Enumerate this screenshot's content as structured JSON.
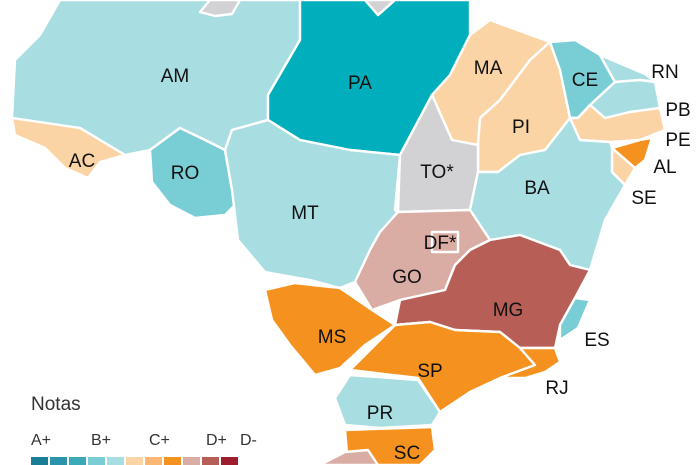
{
  "colors": {
    "teal_dark": "#00afbb",
    "teal_mid": "#79cdd5",
    "teal_light": "#a8dde2",
    "peach": "#fbd4a6",
    "orange": "#f5921f",
    "pink": "#d9aca4",
    "brick": "#b75f57",
    "gray": "#d2d2d4"
  },
  "states": [
    {
      "code": "AM",
      "label": "AM",
      "color": "#a8dde2"
    },
    {
      "code": "PA",
      "label": "PA",
      "color": "#00afbb"
    },
    {
      "code": "AC",
      "label": "AC",
      "color": "#fbd4a6"
    },
    {
      "code": "RO",
      "label": "RO",
      "color": "#79cdd5"
    },
    {
      "code": "MT",
      "label": "MT",
      "color": "#a8dde2"
    },
    {
      "code": "MA",
      "label": "MA",
      "color": "#fbd4a6"
    },
    {
      "code": "PI",
      "label": "PI",
      "color": "#fbd4a6"
    },
    {
      "code": "CE",
      "label": "CE",
      "color": "#79cdd5"
    },
    {
      "code": "RN",
      "label": "RN",
      "color": "#a8dde2"
    },
    {
      "code": "PB",
      "label": "PB",
      "color": "#a8dde2"
    },
    {
      "code": "PE",
      "label": "PE",
      "color": "#fbd4a6"
    },
    {
      "code": "AL",
      "label": "AL",
      "color": "#f5921f"
    },
    {
      "code": "SE",
      "label": "SE",
      "color": "#fbd4a6"
    },
    {
      "code": "TO",
      "label": "TO*",
      "color": "#d2d2d4"
    },
    {
      "code": "BA",
      "label": "BA",
      "color": "#a8dde2"
    },
    {
      "code": "DF",
      "label": "DF*",
      "color": "#d9aca4"
    },
    {
      "code": "GO",
      "label": "GO",
      "color": "#d9aca4"
    },
    {
      "code": "MG",
      "label": "MG",
      "color": "#b75f57"
    },
    {
      "code": "ES",
      "label": "ES",
      "color": "#79cdd5"
    },
    {
      "code": "MS",
      "label": "MS",
      "color": "#f5921f"
    },
    {
      "code": "SP",
      "label": "SP",
      "color": "#f5921f"
    },
    {
      "code": "RJ",
      "label": "RJ",
      "color": "#f5921f"
    },
    {
      "code": "PR",
      "label": "PR",
      "color": "#a8dde2"
    },
    {
      "code": "SC",
      "label": "SC",
      "color": "#f5921f"
    },
    {
      "code": "RS",
      "label": "",
      "color": "#d9aca4"
    },
    {
      "code": "RR",
      "label": "",
      "color": "#d2d2d4"
    },
    {
      "code": "AP",
      "label": "",
      "color": "#d2d2d4"
    }
  ],
  "legend": {
    "title": "Notas",
    "grades": [
      "A+",
      "B+",
      "C+",
      "D+",
      "D-"
    ],
    "swatches": [
      "#1a7c95",
      "#2a94aa",
      "#3aaab8",
      "#79cdd5",
      "#a8dde2",
      "#fbd4a6",
      "#f9b772",
      "#f5921f",
      "#d9aca4",
      "#b75f57",
      "#9e1d2f"
    ]
  }
}
